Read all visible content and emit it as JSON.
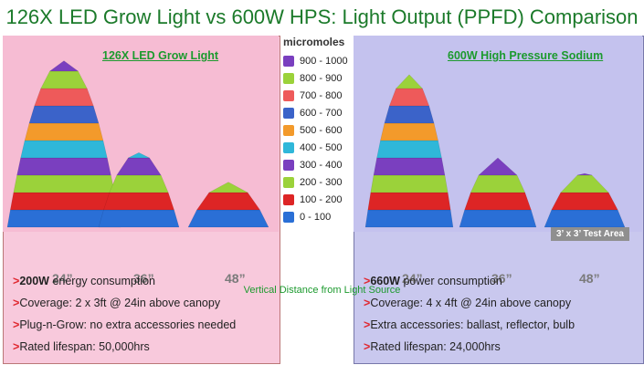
{
  "title": "126X LED Grow Light vs 600W HPS: Light Output (PPFD) Comparison",
  "colors": {
    "title": "#1b7a2a",
    "left_panel_bg": "#f8c9dc",
    "right_panel_bg": "#c9c8ee",
    "accent_arrow": "#e0262e",
    "heading": "#1c9a2e"
  },
  "chart_data": {
    "type": "area",
    "xlabel": "Vertical Distance from Light Source",
    "legend": {
      "title": "micromoles",
      "placement": "center",
      "entries": [
        {
          "label": "900 - 1000",
          "color": "#7a3fbf"
        },
        {
          "label": "800 - 900",
          "color": "#9bd23a"
        },
        {
          "label": "700 - 800",
          "color": "#ee5a5a"
        },
        {
          "label": "600 - 700",
          "color": "#3b63c9"
        },
        {
          "label": "500 - 600",
          "color": "#f39a2b"
        },
        {
          "label": "400 - 500",
          "color": "#2fb7d9"
        },
        {
          "label": "300 - 400",
          "color": "#7a3fbf"
        },
        {
          "label": "200 - 300",
          "color": "#9bd23a"
        },
        {
          "label": "100 - 200",
          "color": "#dd2525"
        },
        {
          "label": "0 - 100",
          "color": "#2a6fd6"
        }
      ]
    },
    "panels": [
      {
        "title": "126X LED Grow Light",
        "categories": [
          "24”",
          "36”",
          "48”"
        ],
        "values": [
          960,
          430,
          260
        ]
      },
      {
        "title": "600W High Pressure Sodium",
        "categories": [
          "24”",
          "36”",
          "48”"
        ],
        "values": [
          880,
          400,
          310
        ],
        "annotation": "3’ x 3’ Test Area"
      }
    ]
  },
  "left_bullets": [
    {
      "bold": "200W",
      "text": " energy consumption"
    },
    {
      "bold": "",
      "text": "Coverage: 2 x 3ft @ 24in above canopy"
    },
    {
      "bold": "",
      "text": "Plug-n-Grow: no extra accessories needed"
    },
    {
      "bold": "",
      "text": "Rated lifespan: 50,000hrs"
    }
  ],
  "right_bullets": [
    {
      "bold": "660W",
      "text": " power consumption"
    },
    {
      "bold": "",
      "text": "Coverage: 4 x 4ft @ 24in above canopy"
    },
    {
      "bold": "",
      "text": "Extra accessories: ballast, reflector, bulb"
    },
    {
      "bold": "",
      "text": "Rated lifespan: 24,000hrs"
    }
  ]
}
